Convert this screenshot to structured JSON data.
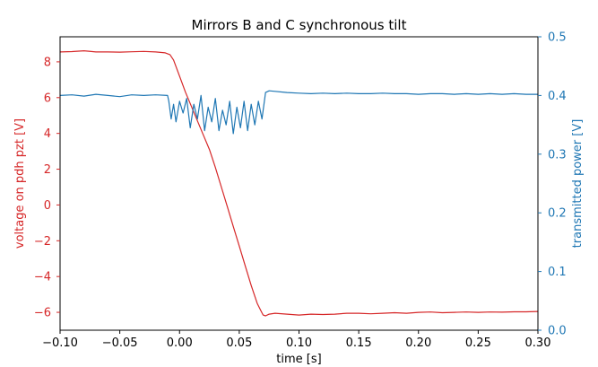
{
  "chart_data": {
    "type": "line",
    "title": "Mirrors B and C synchronous tilt",
    "xlabel": "time [s]",
    "ylabel_left": "voltage on pdh pzt [V]",
    "ylabel_right": "transmitted power [V]",
    "xlim": [
      -0.1,
      0.3
    ],
    "ylim_left": [
      -7,
      9.4
    ],
    "ylim_right": [
      0,
      0.5
    ],
    "x_ticks": [
      "−0.10",
      "−0.05",
      "0.00",
      "0.05",
      "0.10",
      "0.15",
      "0.20",
      "0.25",
      "0.30"
    ],
    "x_tick_values": [
      -0.1,
      -0.05,
      0.0,
      0.05,
      0.1,
      0.15,
      0.2,
      0.25,
      0.3
    ],
    "y_left_ticks": [
      "−6",
      "−4",
      "−2",
      "0",
      "2",
      "4",
      "6",
      "8"
    ],
    "y_left_tick_values": [
      -6,
      -4,
      -2,
      0,
      2,
      4,
      6,
      8
    ],
    "y_right_ticks": [
      "0.0",
      "0.1",
      "0.2",
      "0.3",
      "0.4",
      "0.5"
    ],
    "y_right_tick_values": [
      0.0,
      0.1,
      0.2,
      0.3,
      0.4,
      0.5
    ],
    "grid": false,
    "colors": {
      "left": "#d62728",
      "right": "#1f77b4"
    },
    "series": [
      {
        "axis": "left",
        "color": "#d62728",
        "x": [
          -0.1,
          -0.09,
          -0.08,
          -0.07,
          -0.06,
          -0.05,
          -0.04,
          -0.03,
          -0.02,
          -0.012,
          -0.008,
          -0.005,
          0.0,
          0.005,
          0.01,
          0.015,
          0.02,
          0.025,
          0.03,
          0.035,
          0.04,
          0.045,
          0.05,
          0.055,
          0.06,
          0.065,
          0.068,
          0.07,
          0.072,
          0.075,
          0.08,
          0.09,
          0.1,
          0.11,
          0.12,
          0.13,
          0.14,
          0.15,
          0.16,
          0.17,
          0.18,
          0.19,
          0.2,
          0.21,
          0.22,
          0.23,
          0.24,
          0.25,
          0.26,
          0.27,
          0.28,
          0.29,
          0.3
        ],
        "y": [
          8.55,
          8.57,
          8.62,
          8.55,
          8.55,
          8.54,
          8.56,
          8.58,
          8.55,
          8.5,
          8.4,
          8.1,
          7.2,
          6.3,
          5.5,
          4.7,
          3.9,
          3.1,
          2.1,
          1.0,
          -0.1,
          -1.2,
          -2.3,
          -3.4,
          -4.5,
          -5.5,
          -5.9,
          -6.15,
          -6.2,
          -6.1,
          -6.05,
          -6.1,
          -6.15,
          -6.1,
          -6.12,
          -6.1,
          -6.05,
          -6.05,
          -6.08,
          -6.05,
          -6.02,
          -6.05,
          -6.0,
          -5.98,
          -6.02,
          -6.0,
          -5.98,
          -6.0,
          -5.98,
          -5.99,
          -5.97,
          -5.97,
          -5.95
        ]
      },
      {
        "axis": "right",
        "color": "#1f77b4",
        "x": [
          -0.1,
          -0.09,
          -0.08,
          -0.07,
          -0.06,
          -0.05,
          -0.04,
          -0.03,
          -0.02,
          -0.01,
          -0.009,
          -0.007,
          -0.005,
          -0.003,
          0.0,
          0.003,
          0.006,
          0.009,
          0.012,
          0.015,
          0.018,
          0.021,
          0.024,
          0.027,
          0.03,
          0.033,
          0.036,
          0.039,
          0.042,
          0.045,
          0.048,
          0.051,
          0.054,
          0.057,
          0.06,
          0.063,
          0.066,
          0.069,
          0.072,
          0.075,
          0.08,
          0.09,
          0.1,
          0.11,
          0.12,
          0.13,
          0.14,
          0.15,
          0.16,
          0.17,
          0.18,
          0.19,
          0.2,
          0.21,
          0.22,
          0.23,
          0.24,
          0.25,
          0.26,
          0.27,
          0.28,
          0.29,
          0.3
        ],
        "y": [
          0.4,
          0.401,
          0.399,
          0.402,
          0.4,
          0.398,
          0.401,
          0.4,
          0.401,
          0.4,
          0.39,
          0.36,
          0.385,
          0.355,
          0.39,
          0.37,
          0.395,
          0.345,
          0.385,
          0.36,
          0.4,
          0.34,
          0.38,
          0.355,
          0.395,
          0.34,
          0.375,
          0.35,
          0.39,
          0.335,
          0.38,
          0.345,
          0.39,
          0.34,
          0.385,
          0.35,
          0.39,
          0.36,
          0.405,
          0.408,
          0.407,
          0.405,
          0.404,
          0.403,
          0.404,
          0.403,
          0.404,
          0.403,
          0.403,
          0.404,
          0.403,
          0.403,
          0.402,
          0.403,
          0.403,
          0.402,
          0.403,
          0.402,
          0.403,
          0.402,
          0.403,
          0.402,
          0.402
        ]
      }
    ]
  }
}
